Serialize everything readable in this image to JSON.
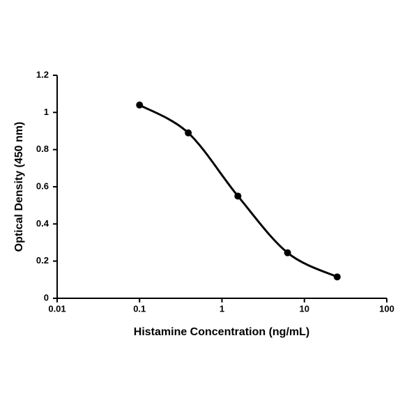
{
  "chart_data": {
    "type": "line",
    "x_label": "Histamine Concentration (ng/mL)",
    "y_label": "Optical Density (450 nm)",
    "x": [
      0.1,
      0.39,
      1.56,
      6.25,
      25
    ],
    "series": [
      {
        "color": "#000000",
        "values": [
          1.04,
          0.89,
          0.55,
          0.245,
          0.115
        ]
      }
    ],
    "x_log": true,
    "xlim": [
      0.01,
      100
    ],
    "xticks": [
      0.01,
      0.1,
      1,
      10,
      100
    ],
    "ylim": [
      0,
      1.2
    ],
    "yticks": [
      0,
      0.2,
      0.4,
      0.6,
      0.8,
      1,
      1.2
    ]
  }
}
